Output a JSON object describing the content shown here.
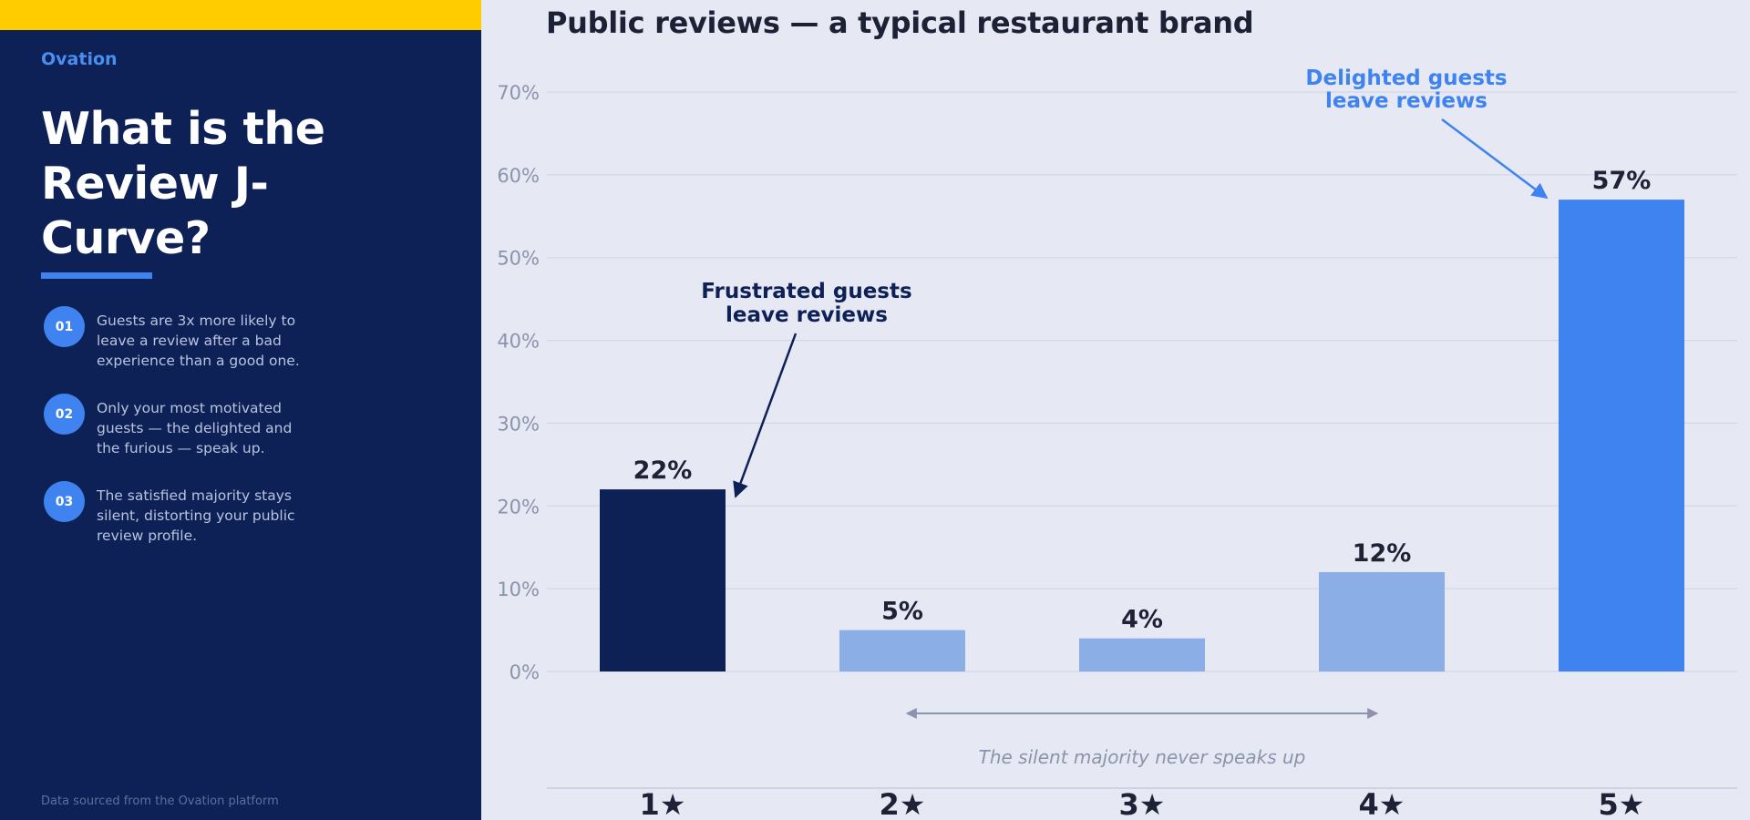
{
  "sidebar": {
    "brand": "Ovation",
    "headline": "What is the Review J-Curve?",
    "points": [
      {
        "number": "01",
        "text": "Guests are 3x more likely to leave a review after a bad experience than a good one."
      },
      {
        "number": "02",
        "text": "Only your most motivated guests — the delighted and the furious — speak up."
      },
      {
        "number": "03",
        "text": "The satisfied majority stays silent, distorting your public review profile."
      }
    ],
    "source_note": "Data sourced from the Ovation platform"
  },
  "chart_data": {
    "type": "bar",
    "title": "Public reviews — a typical restaurant brand",
    "categories": [
      "1★",
      "2★",
      "3★",
      "4★",
      "5★"
    ],
    "values": [
      22,
      5,
      4,
      12,
      57
    ],
    "value_labels": [
      "22%",
      "5%",
      "4%",
      "12%",
      "57%"
    ],
    "bar_colors": [
      "#0e2157",
      "#8caee6",
      "#8caee6",
      "#8caee6",
      "#3f83f0"
    ],
    "ylim": [
      0,
      70
    ],
    "yticks": [
      0,
      10,
      20,
      30,
      40,
      50,
      60,
      70
    ],
    "ytick_labels": [
      "0%",
      "10%",
      "20%",
      "30%",
      "40%",
      "50%",
      "60%",
      "70%"
    ],
    "grid": true,
    "annotations": [
      {
        "lines": [
          "Frustrated guests",
          "leave reviews"
        ],
        "points_to": "1★",
        "color": "#0e2157"
      },
      {
        "lines": [
          "Delighted guests",
          "leave reviews"
        ],
        "points_to": "5★",
        "color": "#3f83f0"
      }
    ],
    "span_note": {
      "text": "The silent majority never speaks up",
      "from": "2★",
      "to": "4★"
    }
  }
}
